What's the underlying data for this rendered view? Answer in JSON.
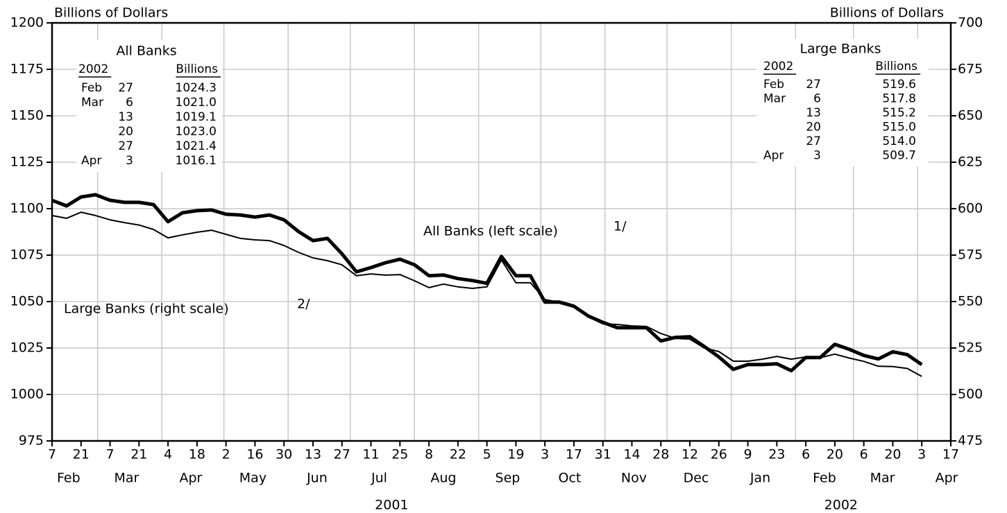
{
  "chart_data": {
    "type": "line",
    "y_label": "Billions of Dollars",
    "y2_label": "Billions of Dollars",
    "x": [
      "2001-02-07",
      "2001-02-14",
      "2001-02-21",
      "2001-02-28",
      "2001-03-07",
      "2001-03-14",
      "2001-03-21",
      "2001-03-28",
      "2001-04-04",
      "2001-04-11",
      "2001-04-18",
      "2001-04-25",
      "2001-05-02",
      "2001-05-09",
      "2001-05-16",
      "2001-05-23",
      "2001-05-30",
      "2001-06-06",
      "2001-06-13",
      "2001-06-20",
      "2001-06-27",
      "2001-07-04",
      "2001-07-11",
      "2001-07-18",
      "2001-07-25",
      "2001-08-01",
      "2001-08-08",
      "2001-08-15",
      "2001-08-22",
      "2001-08-29",
      "2001-09-05",
      "2001-09-12",
      "2001-09-19",
      "2001-09-26",
      "2001-10-03",
      "2001-10-10",
      "2001-10-17",
      "2001-10-24",
      "2001-10-31",
      "2001-11-07",
      "2001-11-14",
      "2001-11-21",
      "2001-11-28",
      "2001-12-05",
      "2001-12-12",
      "2001-12-19",
      "2001-12-26",
      "2002-01-02",
      "2002-01-09",
      "2002-01-16",
      "2002-01-23",
      "2002-01-30",
      "2002-02-06",
      "2002-02-13",
      "2002-02-20",
      "2002-02-27",
      "2002-03-06",
      "2002-03-13",
      "2002-03-20",
      "2002-03-27",
      "2002-04-03"
    ],
    "series": [
      {
        "name": "All Banks (left scale)",
        "note": "1/",
        "color": "#000000",
        "width": 5,
        "values": [
          1104.5,
          1101.5,
          1106.3,
          1107.5,
          1104.5,
          1103.4,
          1103.4,
          1102.2,
          1093,
          1097.8,
          1098.9,
          1099.3,
          1097,
          1096.6,
          1095.5,
          1096.6,
          1094,
          1087.7,
          1082.8,
          1084,
          1075.7,
          1066,
          1068.3,
          1070.9,
          1072.8,
          1069.8,
          1063.9,
          1064.3,
          1062.4,
          1061.3,
          1059.8,
          1074.3,
          1063.9,
          1063.9,
          1049.7,
          1049.7,
          1047.5,
          1042.2,
          1038.8,
          1035.9,
          1035.9,
          1035.9,
          1028.8,
          1030.7,
          1031.1,
          1025.8,
          1020.2,
          1013.5,
          1016.1,
          1016.1,
          1016.5,
          1012.8,
          1019.9,
          1019.9,
          1027,
          1024.3,
          1021,
          1019.1,
          1023,
          1021.4,
          1016.1
        ]
      },
      {
        "name": "Large Banks (right scale)",
        "note": "2/",
        "color": "#000000",
        "width": 2,
        "axis": "y2",
        "values": [
          596.3,
          594.8,
          598.1,
          596.3,
          594,
          592.5,
          591.2,
          588.8,
          584.3,
          585.9,
          587.3,
          588.4,
          586.2,
          584,
          583.2,
          582.8,
          580.2,
          576.5,
          573.5,
          572,
          569.8,
          563.9,
          564.9,
          564.2,
          564.5,
          561.2,
          557.5,
          559.4,
          557.9,
          557.1,
          557.9,
          572.4,
          560.1,
          560.1,
          551.1,
          549.6,
          547,
          541.8,
          538,
          537.7,
          536.9,
          536.6,
          532.8,
          530.2,
          529.8,
          525,
          523.1,
          517.9,
          517.9,
          519,
          520.5,
          519,
          520.2,
          519.8,
          521.7,
          519.6,
          517.8,
          515.2,
          515,
          514,
          509.7
        ]
      }
    ],
    "xlim": [
      "2001-02-07",
      "2002-04-17"
    ],
    "xticks": [
      {
        "value": "2001-02-07",
        "label": "7"
      },
      {
        "value": "2001-02-21",
        "label": "21"
      },
      {
        "value": "2001-03-07",
        "label": "7"
      },
      {
        "value": "2001-03-21",
        "label": "21"
      },
      {
        "value": "2001-04-04",
        "label": "4"
      },
      {
        "value": "2001-04-18",
        "label": "18"
      },
      {
        "value": "2001-05-02",
        "label": "2"
      },
      {
        "value": "2001-05-16",
        "label": "16"
      },
      {
        "value": "2001-05-30",
        "label": "30"
      },
      {
        "value": "2001-06-13",
        "label": "13"
      },
      {
        "value": "2001-06-27",
        "label": "27"
      },
      {
        "value": "2001-07-11",
        "label": "11"
      },
      {
        "value": "2001-07-25",
        "label": "25"
      },
      {
        "value": "2001-08-08",
        "label": "8"
      },
      {
        "value": "2001-08-22",
        "label": "22"
      },
      {
        "value": "2001-09-05",
        "label": "5"
      },
      {
        "value": "2001-09-19",
        "label": "19"
      },
      {
        "value": "2001-10-03",
        "label": "3"
      },
      {
        "value": "2001-10-17",
        "label": "17"
      },
      {
        "value": "2001-10-31",
        "label": "31"
      },
      {
        "value": "2001-11-14",
        "label": "14"
      },
      {
        "value": "2001-11-28",
        "label": "28"
      },
      {
        "value": "2001-12-12",
        "label": "12"
      },
      {
        "value": "2001-12-26",
        "label": "26"
      },
      {
        "value": "2002-01-09",
        "label": "9"
      },
      {
        "value": "2002-01-23",
        "label": "23"
      },
      {
        "value": "2002-02-06",
        "label": "6"
      },
      {
        "value": "2002-02-20",
        "label": "20"
      },
      {
        "value": "2002-03-06",
        "label": "6"
      },
      {
        "value": "2002-03-20",
        "label": "20"
      },
      {
        "value": "2002-04-03",
        "label": "3"
      },
      {
        "value": "2002-04-17",
        "label": "17"
      }
    ],
    "xmonths": [
      {
        "value": "2001-02",
        "label": "Feb"
      },
      {
        "value": "2001-03",
        "label": "Mar"
      },
      {
        "value": "2001-04",
        "label": "Apr"
      },
      {
        "value": "2001-05",
        "label": "May"
      },
      {
        "value": "2001-06",
        "label": "Jun"
      },
      {
        "value": "2001-07",
        "label": "Jul"
      },
      {
        "value": "2001-08",
        "label": "Aug"
      },
      {
        "value": "2001-09",
        "label": "Sep"
      },
      {
        "value": "2001-10",
        "label": "Oct"
      },
      {
        "value": "2001-11",
        "label": "Nov"
      },
      {
        "value": "2001-12",
        "label": "Dec"
      },
      {
        "value": "2002-01",
        "label": "Jan"
      },
      {
        "value": "2002-02",
        "label": "Feb"
      },
      {
        "value": "2002-03",
        "label": "Mar"
      },
      {
        "value": "2002-04",
        "label": "Apr"
      }
    ],
    "xyears": [
      2001,
      2002
    ],
    "ylim": [
      975,
      1200
    ],
    "yticks": [
      975,
      1000,
      1025,
      1050,
      1075,
      1100,
      1125,
      1150,
      1175,
      1200
    ],
    "y2lim": [
      475,
      700
    ],
    "y2ticks": [
      475,
      500,
      525,
      550,
      575,
      600,
      625,
      650,
      675,
      700
    ],
    "grid": true,
    "tables": [
      {
        "title": "All Banks",
        "year": "2002",
        "unit": "Billions",
        "rows": [
          [
            "Feb",
            "27",
            "1024.3"
          ],
          [
            "Mar",
            "6",
            "1021.0"
          ],
          [
            null,
            "13",
            "1019.1"
          ],
          [
            null,
            "20",
            "1023.0"
          ],
          [
            null,
            "27",
            "1021.4"
          ],
          [
            "Apr",
            "3",
            "1016.1"
          ]
        ]
      },
      {
        "title": "Large Banks",
        "year": "2002",
        "unit": "Billions",
        "rows": [
          [
            "Feb",
            "27",
            "519.6"
          ],
          [
            "Mar",
            "6",
            "517.8"
          ],
          [
            null,
            "13",
            "515.2"
          ],
          [
            null,
            "20",
            "515.0"
          ],
          [
            null,
            "27",
            "514.0"
          ],
          [
            "Apr",
            "3",
            "509.7"
          ]
        ]
      }
    ]
  }
}
